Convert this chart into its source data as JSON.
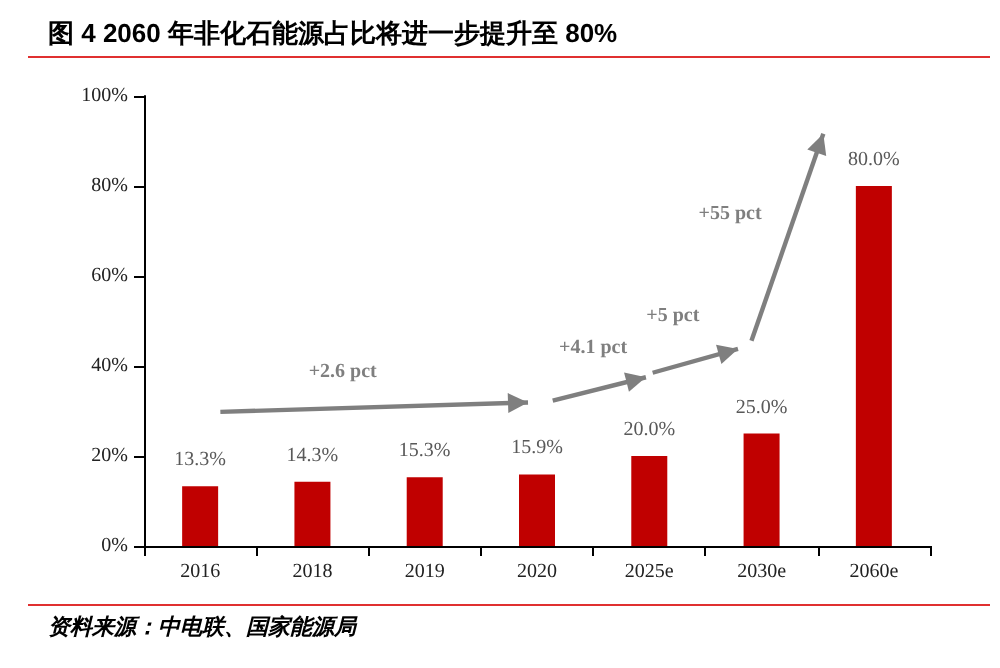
{
  "chart_data": {
    "type": "bar",
    "title": "图 4 2060 年非化石能源占比将进一步提升至 80%",
    "categories": [
      "2016",
      "2018",
      "2019",
      "2020",
      "2025e",
      "2030e",
      "2060e"
    ],
    "values": [
      13.3,
      14.3,
      15.3,
      15.9,
      20.0,
      25.0,
      80.0
    ],
    "color": "#c00000",
    "value_labels": [
      "13.3%",
      "14.3%",
      "15.3%",
      "15.9%",
      "20.0%",
      "25.0%",
      "80.0%"
    ],
    "ylim": [
      0,
      100
    ],
    "yticks": [
      {
        "value": 0,
        "label": "0%"
      },
      {
        "value": 20,
        "label": "20%"
      },
      {
        "value": 40,
        "label": "40%"
      },
      {
        "value": 60,
        "label": "60%"
      },
      {
        "value": 80,
        "label": "80%"
      },
      {
        "value": 100,
        "label": "100%"
      }
    ],
    "grid": false,
    "annotations": [
      "+2.6 pct",
      "+4.1 pct",
      "+5 pct",
      "+55 pct",
      "资料来源：中电联、国家能源局"
    ]
  }
}
